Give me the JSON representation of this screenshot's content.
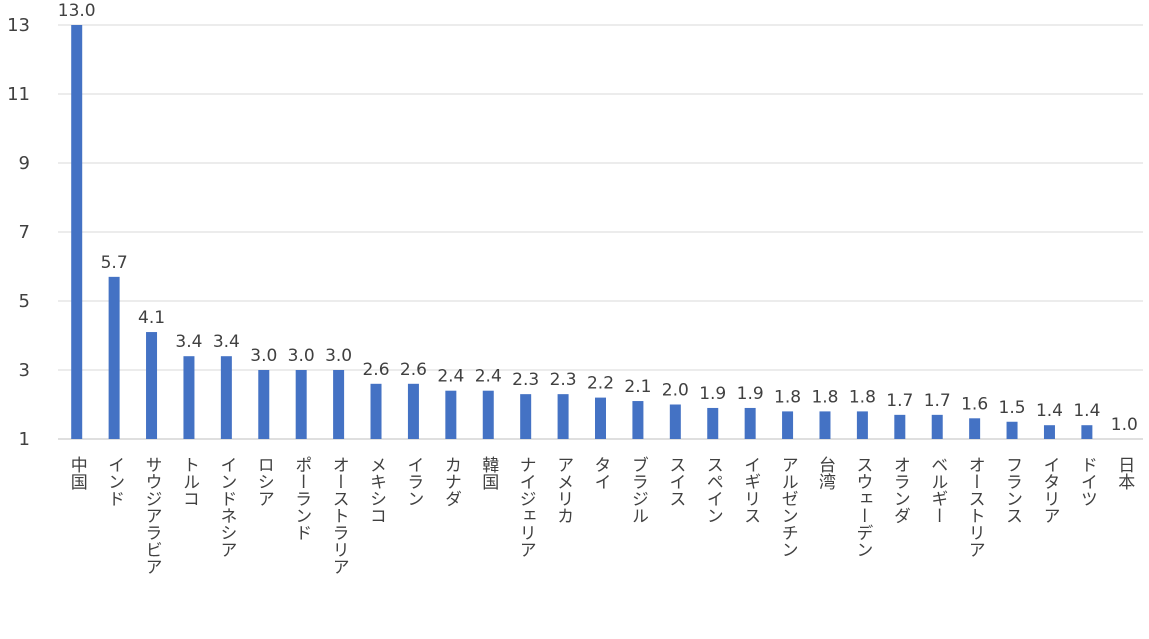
{
  "chart_data": {
    "type": "bar",
    "title": "",
    "xlabel": "",
    "ylabel": "",
    "ylim": [
      1,
      13
    ],
    "yticks": [
      1,
      3,
      5,
      7,
      9,
      11,
      13
    ],
    "grid": true,
    "bar_color": "#4472C4",
    "categories": [
      "中国",
      "インド",
      "サウジアラビア",
      "トルコ",
      "インドネシア",
      "ロシア",
      "ポーランド",
      "オーストラリア",
      "メキシコ",
      "イラン",
      "カナダ",
      "韓国",
      "ナイジェリア",
      "アメリカ",
      "タイ",
      "ブラジル",
      "スイス",
      "スペイン",
      "イギリス",
      "アルゼンチン",
      "台湾",
      "スウェーデン",
      "オランダ",
      "ベルギー",
      "オーストリア",
      "フランス",
      "イタリア",
      "ドイツ",
      "日本"
    ],
    "values": [
      13.0,
      5.7,
      4.1,
      3.4,
      3.4,
      3.0,
      3.0,
      3.0,
      2.6,
      2.6,
      2.4,
      2.4,
      2.3,
      2.3,
      2.2,
      2.1,
      2.0,
      1.9,
      1.9,
      1.8,
      1.8,
      1.8,
      1.7,
      1.7,
      1.6,
      1.5,
      1.4,
      1.4,
      1.0
    ],
    "data_labels": [
      "13.0",
      "5.7",
      "4.1",
      "3.4",
      "3.4",
      "3.0",
      "3.0",
      "3.0",
      "2.6",
      "2.6",
      "2.4",
      "2.4",
      "2.3",
      "2.3",
      "2.2",
      "2.1",
      "2.0",
      "1.9",
      "1.9",
      "1.8",
      "1.8",
      "1.8",
      "1.7",
      "1.7",
      "1.6",
      "1.5",
      "1.4",
      "1.4",
      "1.0"
    ]
  }
}
